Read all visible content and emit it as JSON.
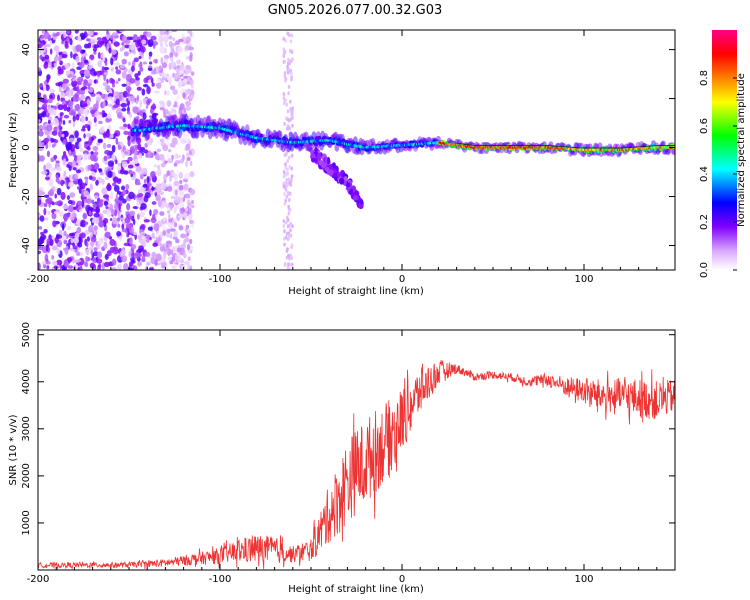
{
  "title": "GN05.2026.077.00.32.G03",
  "chart_data": [
    {
      "id": "spectrogram",
      "type": "heatmap",
      "xlabel": "Height of straight line (km)",
      "ylabel": "Frequency (Hz)",
      "xlim": [
        -200,
        150
      ],
      "ylim": [
        -50,
        48
      ],
      "xticks": [
        -200,
        -100,
        0,
        100
      ],
      "xtick_labels": [
        "-200",
        "-100",
        "0",
        "100"
      ],
      "yticks": [
        -40,
        -20,
        0,
        20,
        40
      ],
      "ytick_labels": [
        "-40",
        "-20",
        "0",
        "20",
        "40"
      ],
      "colorbar": {
        "label": "Normalized spectral amplitude",
        "range": [
          0,
          1
        ],
        "ticks": [
          0.0,
          0.2,
          0.4,
          0.6,
          0.8
        ],
        "tick_labels": [
          "0.0",
          "0.2",
          "0.4",
          "0.6",
          "0.8"
        ],
        "colors": [
          "#ffffff",
          "#e0b0ff",
          "#8000ff",
          "#0000ff",
          "#00ffff",
          "#00ff00",
          "#ffff00",
          "#ff8000",
          "#ff0000",
          "#ff0080"
        ]
      },
      "features": [
        {
          "name": "scatter noise",
          "x_range": [
            -200,
            -115
          ],
          "freq_range": [
            -50,
            48
          ],
          "amplitude": 0.1
        },
        {
          "name": "faint noise column",
          "x_range": [
            -65,
            -60
          ],
          "freq_range": [
            -50,
            48
          ],
          "amplitude": 0.03
        },
        {
          "name": "signal ridge",
          "points": [
            [
              -145,
              7
            ],
            [
              -120,
              9
            ],
            [
              -100,
              8
            ],
            [
              -80,
              4
            ],
            [
              -60,
              2
            ],
            [
              -40,
              3
            ],
            [
              -20,
              0
            ],
            [
              0,
              1
            ],
            [
              20,
              2
            ],
            [
              40,
              0
            ],
            [
              60,
              0
            ],
            [
              80,
              0
            ],
            [
              100,
              -1
            ],
            [
              120,
              -1
            ],
            [
              140,
              0
            ],
            [
              150,
              0
            ]
          ]
        },
        {
          "name": "descending branch",
          "points": [
            [
              -50,
              -2
            ],
            [
              -40,
              -8
            ],
            [
              -30,
              -14
            ],
            [
              -22,
              -24
            ]
          ]
        }
      ]
    },
    {
      "id": "snr",
      "type": "line",
      "xlabel": "Height of straight line (km)",
      "ylabel": "SNR (10 * v/v)",
      "xlim": [
        -200,
        150
      ],
      "ylim": [
        0,
        5100
      ],
      "xticks": [
        -200,
        -100,
        0,
        100
      ],
      "xtick_labels": [
        "-200",
        "-100",
        "0",
        "100"
      ],
      "yticks": [
        1000,
        2000,
        3000,
        4000,
        5000
      ],
      "ytick_labels": [
        "1000",
        "2000",
        "3000",
        "4000",
        "5000"
      ],
      "color": "#ee3333",
      "envelope": {
        "x": [
          -200,
          -150,
          -130,
          -110,
          -100,
          -90,
          -80,
          -70,
          -60,
          -50,
          -45,
          -40,
          -35,
          -30,
          -25,
          -20,
          -15,
          -10,
          -5,
          0,
          5,
          10,
          15,
          20,
          25,
          30,
          35,
          40,
          50,
          60,
          70,
          80,
          90,
          100,
          110,
          120,
          130,
          140,
          150
        ],
        "mean": [
          100,
          110,
          150,
          250,
          300,
          400,
          450,
          430,
          330,
          430,
          800,
          1200,
          1500,
          1900,
          2100,
          2300,
          2500,
          2700,
          2900,
          3200,
          3500,
          3800,
          4000,
          4200,
          4250,
          4280,
          4200,
          4100,
          4150,
          4100,
          4000,
          4050,
          3900,
          3800,
          3700,
          3700,
          3650,
          3600,
          3700
        ],
        "spread": [
          80,
          80,
          120,
          200,
          250,
          350,
          450,
          400,
          250,
          350,
          650,
          900,
          1100,
          1300,
          1300,
          1300,
          1300,
          1200,
          1100,
          1000,
          900,
          700,
          550,
          400,
          250,
          150,
          130,
          120,
          120,
          120,
          150,
          200,
          300,
          400,
          500,
          550,
          600,
          600,
          500
        ]
      }
    }
  ]
}
